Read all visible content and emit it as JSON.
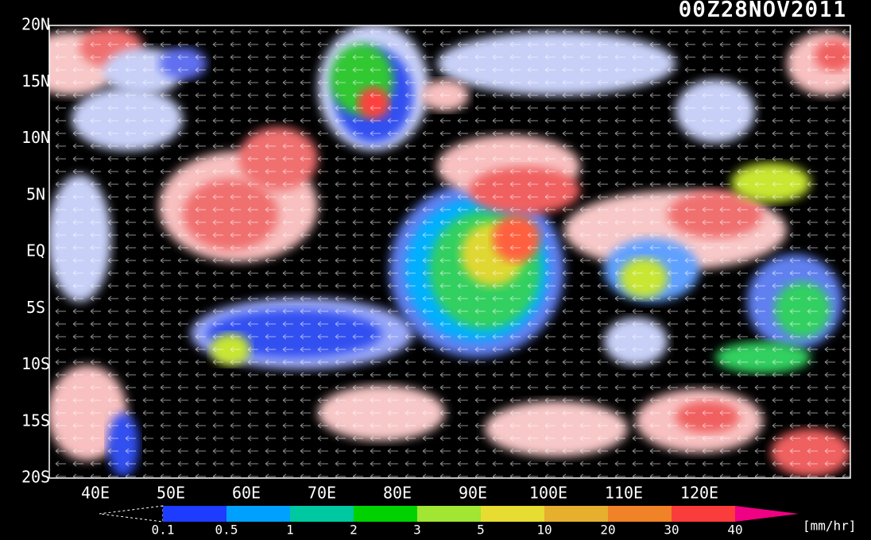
{
  "title": "00Z28NOV2011",
  "lat_labels": [
    "20N",
    "15N",
    "10N",
    "5N",
    "EQ",
    "5S",
    "10S",
    "15S",
    "20S"
  ],
  "lon_labels": [
    "40E",
    "50E",
    "60E",
    "70E",
    "80E",
    "90E",
    "100E",
    "110E",
    "120E"
  ],
  "colorbar": {
    "levels": [
      0.1,
      0.5,
      1,
      2,
      3,
      5,
      10,
      20,
      30,
      40
    ],
    "colors": [
      "#1e3cff",
      "#00a0ff",
      "#00c8a0",
      "#00d200",
      "#a0e632",
      "#e6dc32",
      "#e6af2d",
      "#f08228",
      "#fa3c3c",
      "#f00082"
    ],
    "unit": "[mm/hr]"
  }
}
